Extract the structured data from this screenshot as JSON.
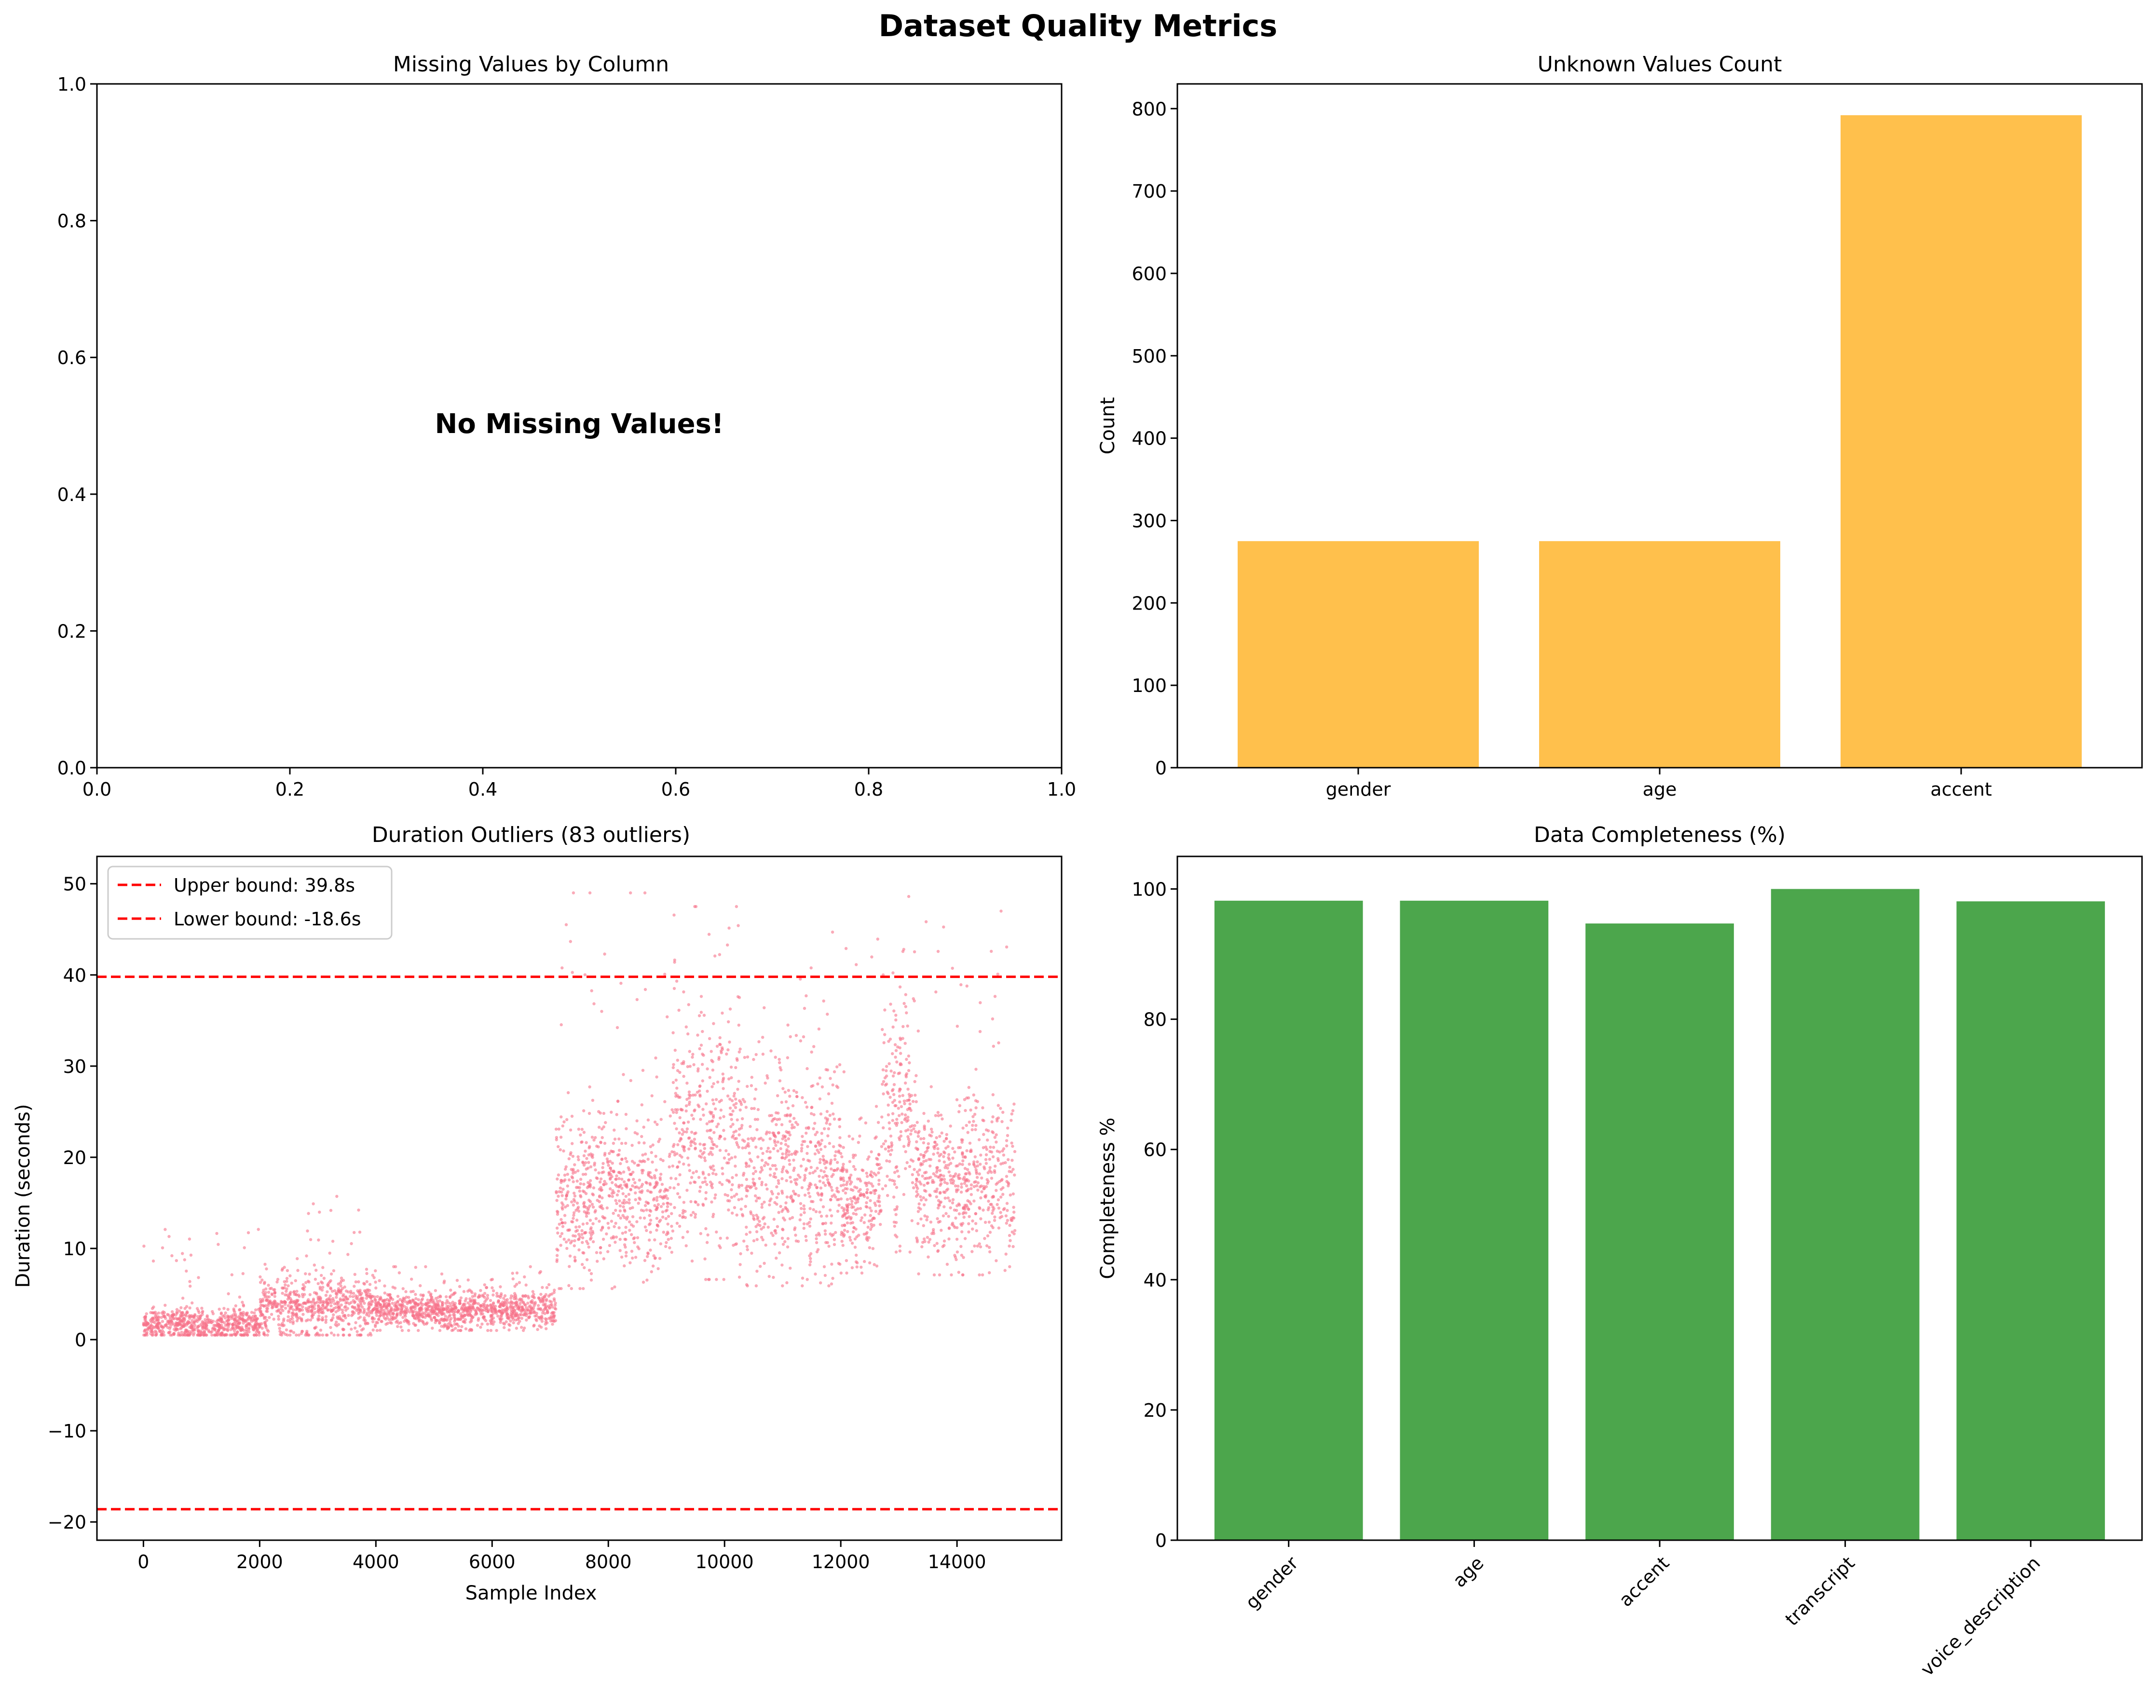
{
  "figure": {
    "title": "Dataset Quality Metrics"
  },
  "chart_data": [
    {
      "id": "missing",
      "type": "bar",
      "title": "Missing Values by Column",
      "xlabel": "",
      "ylabel": "",
      "xlim": [
        0,
        1
      ],
      "ylim": [
        0,
        1
      ],
      "xticks": [
        "0.0",
        "0.2",
        "0.4",
        "0.6",
        "0.8",
        "1.0"
      ],
      "yticks": [
        "0.0",
        "0.2",
        "0.4",
        "0.6",
        "0.8",
        "1.0"
      ],
      "annotation": "No Missing Values!",
      "annotation_color": "#008000",
      "categories": [],
      "values": []
    },
    {
      "id": "unknown",
      "type": "bar",
      "title": "Unknown Values Count",
      "xlabel": "",
      "ylabel": "Count",
      "ylim": [
        0,
        830
      ],
      "yticks": [
        "0",
        "100",
        "200",
        "300",
        "400",
        "500",
        "600",
        "700",
        "800"
      ],
      "categories": [
        "gender",
        "age",
        "accent"
      ],
      "values": [
        275,
        275,
        792
      ],
      "color": "#ffa500"
    },
    {
      "id": "outliers",
      "type": "scatter",
      "title": "Duration Outliers (83 outliers)",
      "xlabel": "Sample Index",
      "ylabel": "Duration (seconds)",
      "xlim": [
        -800,
        15800
      ],
      "ylim": [
        -22,
        53
      ],
      "xticks": [
        "0",
        "2000",
        "4000",
        "6000",
        "8000",
        "10000",
        "12000",
        "14000"
      ],
      "yticks": [
        "−20",
        "−10",
        "0",
        "10",
        "20",
        "30",
        "40",
        "50"
      ],
      "point_color": "#f77189",
      "upper_bound": 39.8,
      "lower_bound": -18.6,
      "bound_color": "#ff0000",
      "legend": [
        "Upper bound: 39.8s",
        "Lower bound: -18.6s"
      ],
      "legend_position": "top-left",
      "segments": [
        {
          "start": 0,
          "end": 2000,
          "median": 1.6,
          "spread": 0.9,
          "max": 13.5
        },
        {
          "start": 2000,
          "end": 4000,
          "median": 3.5,
          "spread": 1.7,
          "max": 17
        },
        {
          "start": 4000,
          "end": 7100,
          "median": 3.2,
          "spread": 1.0,
          "max": 8
        },
        {
          "start": 7100,
          "end": 9100,
          "median": 15.5,
          "spread": 4.5,
          "max": 49
        },
        {
          "start": 9100,
          "end": 10300,
          "median": 22,
          "spread": 7,
          "max": 47.5
        },
        {
          "start": 10300,
          "end": 12000,
          "median": 18,
          "spread": 5.5,
          "max": 47.5
        },
        {
          "start": 12000,
          "end": 12700,
          "median": 15,
          "spread": 3.5,
          "max": 49.5
        },
        {
          "start": 12700,
          "end": 13300,
          "median": 25,
          "spread": 7,
          "max": 49.5
        },
        {
          "start": 13300,
          "end": 15000,
          "median": 17,
          "spread": 4.5,
          "max": 47
        }
      ]
    },
    {
      "id": "completeness",
      "type": "bar",
      "title": "Data Completeness (%)",
      "xlabel": "",
      "ylabel": "Completeness %",
      "ylim": [
        0,
        105
      ],
      "yticks": [
        "0",
        "20",
        "40",
        "60",
        "80",
        "100"
      ],
      "categories": [
        "gender",
        "age",
        "accent",
        "transcript",
        "voice_description"
      ],
      "values": [
        98.2,
        98.2,
        94.7,
        100,
        98.1
      ],
      "color": "#008000"
    }
  ]
}
